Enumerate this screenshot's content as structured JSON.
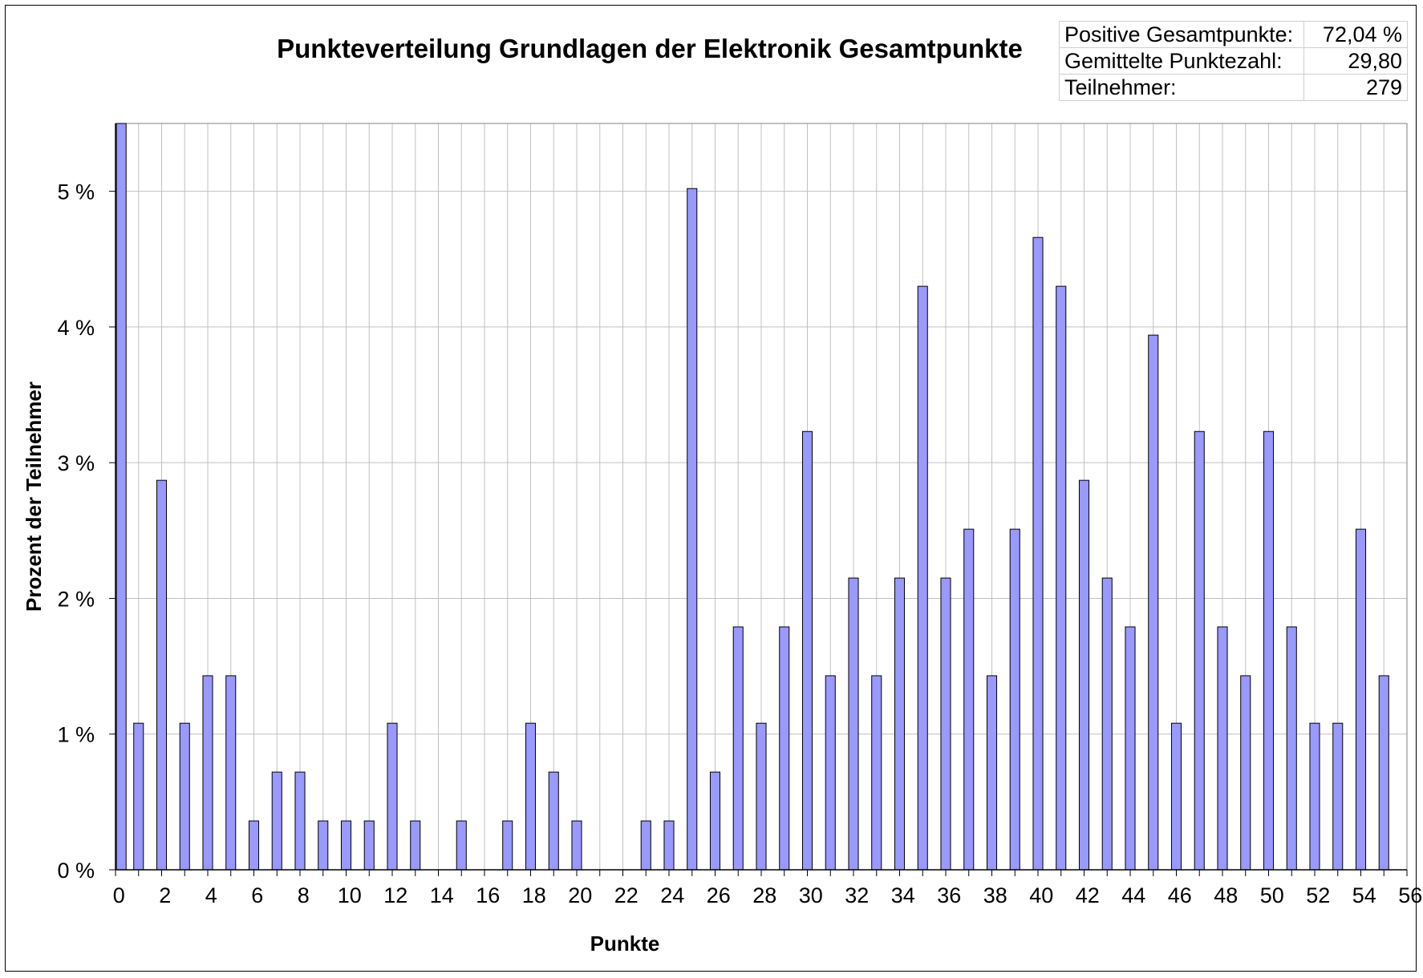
{
  "chart_data": {
    "type": "bar",
    "title": "Punkteverteilung Grundlagen der Elektronik Gesamtpunkte",
    "xlabel": "Punkte",
    "ylabel": "Prozent der Teilnehmer",
    "categories": [
      0,
      1,
      2,
      3,
      4,
      5,
      6,
      7,
      8,
      9,
      10,
      11,
      12,
      13,
      14,
      15,
      16,
      17,
      18,
      19,
      20,
      21,
      22,
      23,
      24,
      25,
      26,
      27,
      28,
      29,
      30,
      31,
      32,
      33,
      34,
      35,
      36,
      37,
      38,
      39,
      40,
      41,
      42,
      43,
      44,
      45,
      46,
      47,
      48,
      49,
      50,
      51,
      52,
      53,
      54,
      55
    ],
    "values": [
      5.5,
      1.08,
      2.87,
      1.08,
      1.43,
      1.43,
      0.36,
      0.72,
      0.72,
      0.36,
      0.36,
      0.36,
      1.08,
      0.36,
      0,
      0.36,
      0,
      0.36,
      1.08,
      0.72,
      0.36,
      0,
      0,
      0.36,
      0.36,
      5.02,
      0.72,
      1.79,
      1.08,
      1.79,
      3.23,
      1.43,
      2.15,
      1.43,
      2.15,
      4.3,
      2.15,
      2.51,
      1.43,
      2.51,
      4.66,
      4.3,
      2.87,
      2.15,
      1.79,
      3.94,
      1.08,
      3.23,
      1.79,
      1.43,
      3.23,
      1.79,
      1.08,
      1.08,
      2.51,
      1.43
    ],
    "xticks": [
      "0",
      "2",
      "4",
      "6",
      "8",
      "10",
      "12",
      "14",
      "16",
      "18",
      "20",
      "22",
      "24",
      "26",
      "28",
      "30",
      "32",
      "34",
      "36",
      "38",
      "40",
      "42",
      "44",
      "46",
      "48",
      "50",
      "52",
      "54",
      "56"
    ],
    "yticks": [
      "0 %",
      "1 %",
      "2 %",
      "3 %",
      "4 %",
      "5 %"
    ],
    "ylim": [
      0,
      5.5
    ],
    "xlim": [
      0,
      56
    ],
    "grid": true,
    "bar_color": "#9999ff",
    "grid_color": "#c0c0c0"
  },
  "stats": [
    {
      "label": "Positive Gesamtpunkte:",
      "value": "72,04 %"
    },
    {
      "label": "Gemittelte Punktezahl:",
      "value": "29,80"
    },
    {
      "label": "Teilnehmer:",
      "value": "279"
    }
  ]
}
